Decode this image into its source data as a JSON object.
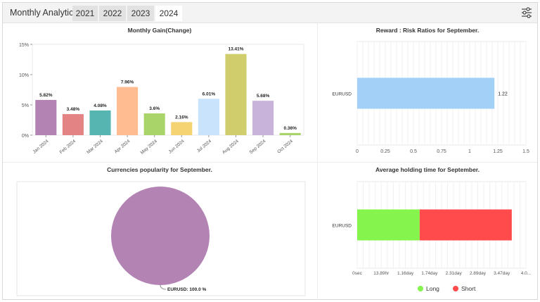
{
  "header": {
    "title": "Monthly Analytics",
    "tabs": [
      {
        "label": "2021",
        "active": false
      },
      {
        "label": "2022",
        "active": false
      },
      {
        "label": "2023",
        "active": false
      },
      {
        "label": "2024",
        "active": true
      }
    ],
    "settings_icon": "sliders-icon"
  },
  "chart_data": [
    {
      "type": "bar",
      "title": "Monthly Gain(Change)",
      "categories": [
        "Jan 2024",
        "Feb 2024",
        "Mar 2024",
        "Apr 2024",
        "May 2024",
        "Jun 2024",
        "Jul 2024",
        "Aug 2024",
        "Sep 2024",
        "Oct 2024"
      ],
      "values": [
        5.82,
        3.48,
        4.08,
        7.96,
        3.6,
        2.16,
        6.01,
        13.41,
        5.68,
        0.36
      ],
      "value_labels": [
        "5.82%",
        "3.48%",
        "4.08%",
        "7.96%",
        "3.6%",
        "2.16%",
        "6.01%",
        "13.41%",
        "5.68%",
        "0.36%"
      ],
      "colors": [
        "#b383b4",
        "#e38383",
        "#56b5b0",
        "#ffbc91",
        "#a9d46a",
        "#f6d372",
        "#c8e3fb",
        "#d0cd6c",
        "#c8b3da",
        "#a9d46a"
      ],
      "yticks": [
        "0%",
        "5%",
        "10%",
        "15%"
      ],
      "ylim": [
        0,
        15
      ]
    },
    {
      "type": "bar",
      "orientation": "horizontal",
      "title": "Reward : Risk Ratios for September.",
      "categories": [
        "EURUSD"
      ],
      "values": [
        1.22
      ],
      "value_labels": [
        "1.22"
      ],
      "color": "#a3d0f6",
      "xticks": [
        "0",
        "0.25",
        "0.5",
        "0.75",
        "1",
        "1.25",
        "1.5"
      ],
      "xlim": [
        0,
        1.5
      ]
    },
    {
      "type": "pie",
      "title": "Currencies popularity for September.",
      "slices": [
        {
          "label": "EURUSD: 100.0 %",
          "value": 100.0,
          "color": "#b383b4"
        }
      ]
    },
    {
      "type": "bar",
      "orientation": "horizontal",
      "stacked": true,
      "title": "Average holding time for September.",
      "categories": [
        "EURUSD"
      ],
      "xticks": [
        "0sec",
        "13.89hr",
        "1.16day",
        "1.74day",
        "2.31day",
        "2.89day",
        "3.47day",
        "4.0..."
      ],
      "x_max_days": 4.05,
      "series": [
        {
          "name": "Long",
          "values_days": [
            1.5
          ],
          "color": "#85f54d"
        },
        {
          "name": "Short",
          "values_days": [
            2.21
          ],
          "color": "#ff4b4b"
        }
      ],
      "legend_position": "bottom-center"
    }
  ]
}
